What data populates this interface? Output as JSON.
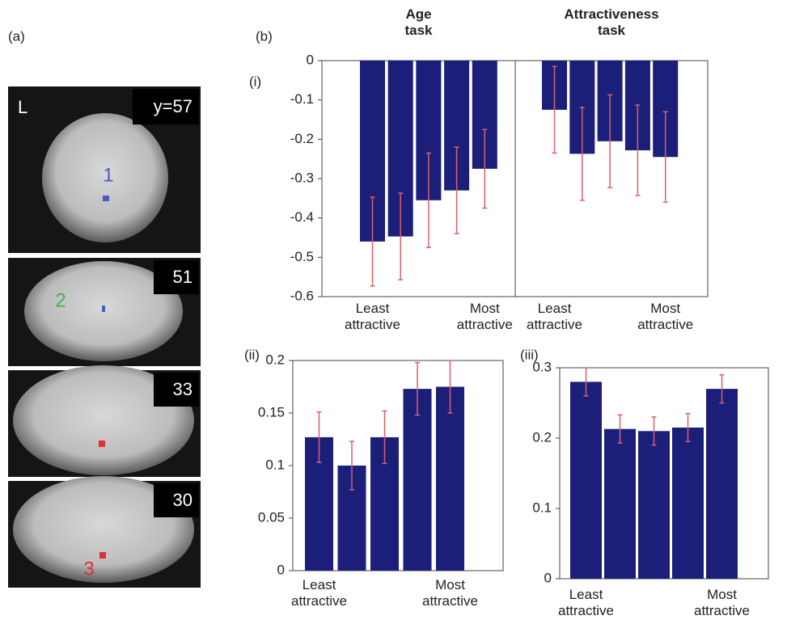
{
  "panel_a": {
    "label": "(a)",
    "hemisphere": "L",
    "slices": [
      "y=57",
      "51",
      "33",
      "30"
    ],
    "regions": [
      "1",
      "2",
      "3"
    ]
  },
  "panel_b": {
    "label": "(b)"
  },
  "chart_data": [
    {
      "type": "bar",
      "panel": "(i)",
      "title": "Age task",
      "categories": [
        "Least attractive",
        null,
        null,
        null,
        "Most attractive"
      ],
      "values": [
        -0.46,
        -0.447,
        -0.355,
        -0.33,
        -0.275
      ],
      "errors": [
        0.113,
        0.11,
        0.12,
        0.11,
        0.1
      ],
      "color": "#1c1f7a",
      "error_color": "#d9606a",
      "ylim": [
        -0.6,
        0
      ],
      "yticks": [
        0,
        -0.1,
        -0.2,
        -0.3,
        -0.4,
        -0.5,
        -0.6
      ]
    },
    {
      "type": "bar",
      "title": "Attractiveness task",
      "categories": [
        "Least attractive",
        null,
        null,
        null,
        "Most attractive"
      ],
      "values": [
        -0.125,
        -0.237,
        -0.205,
        -0.228,
        -0.245
      ],
      "errors": [
        0.11,
        0.118,
        0.118,
        0.115,
        0.115
      ],
      "color": "#1c1f7a",
      "error_color": "#d9606a",
      "ylim": [
        -0.6,
        0
      ]
    },
    {
      "type": "bar",
      "panel": "(ii)",
      "categories": [
        "Least attractive",
        null,
        null,
        null,
        "Most attractive"
      ],
      "values": [
        0.127,
        0.1,
        0.127,
        0.173,
        0.175
      ],
      "errors": [
        0.024,
        0.023,
        0.025,
        0.025,
        0.025
      ],
      "color": "#1c1f7a",
      "error_color": "#d9606a",
      "ylim": [
        0,
        0.2
      ],
      "yticks": [
        0,
        0.05,
        0.1,
        0.15,
        0.2
      ]
    },
    {
      "type": "bar",
      "panel": "(iii)",
      "categories": [
        "Least attractive",
        null,
        null,
        null,
        "Most attractive"
      ],
      "values": [
        0.28,
        0.213,
        0.21,
        0.215,
        0.27
      ],
      "errors": [
        0.02,
        0.02,
        0.02,
        0.02,
        0.02
      ],
      "color": "#1c1f7a",
      "error_color": "#d9606a",
      "ylim": [
        0,
        0.3
      ],
      "yticks": [
        0,
        0.1,
        0.2,
        0.3
      ]
    }
  ]
}
